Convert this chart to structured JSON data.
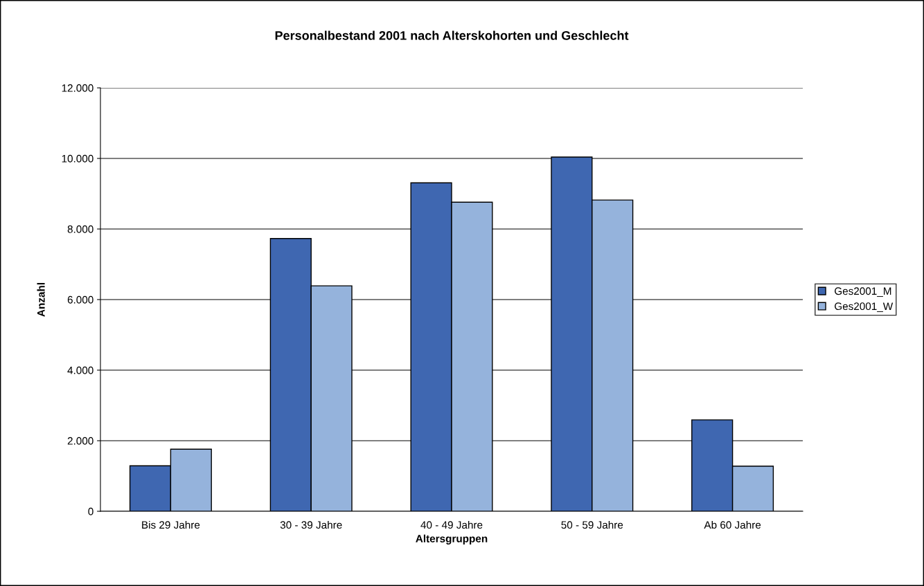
{
  "chart_data": {
    "type": "bar",
    "title": "Personalbestand 2001 nach Alterskohorten und Geschlecht",
    "xlabel": "Altersgruppen",
    "ylabel": "Anzahl",
    "categories": [
      "Bis 29 Jahre",
      "30 - 39 Jahre",
      "40 - 49 Jahre",
      "50 - 59 Jahre",
      "Ab 60 Jahre"
    ],
    "series": [
      {
        "name": "Ges2001_M",
        "color": "#3f67b1",
        "values": [
          1290,
          7730,
          9310,
          10040,
          2590
        ]
      },
      {
        "name": "Ges2001_W",
        "color": "#95b3dc",
        "values": [
          1760,
          6390,
          8760,
          8820,
          1280
        ]
      }
    ],
    "ylim": [
      0,
      12000
    ],
    "yticks": [
      0,
      {
        "value": 2000,
        "label": "2.000"
      },
      {
        "value": 4000,
        "label": "4.000"
      },
      {
        "value": 6000,
        "label": "6.000"
      },
      {
        "value": 8000,
        "label": "8.000"
      },
      {
        "value": 10000,
        "label": "10.000"
      },
      {
        "value": 12000,
        "label": "12.000"
      }
    ],
    "grid": "y",
    "legend": "right"
  }
}
